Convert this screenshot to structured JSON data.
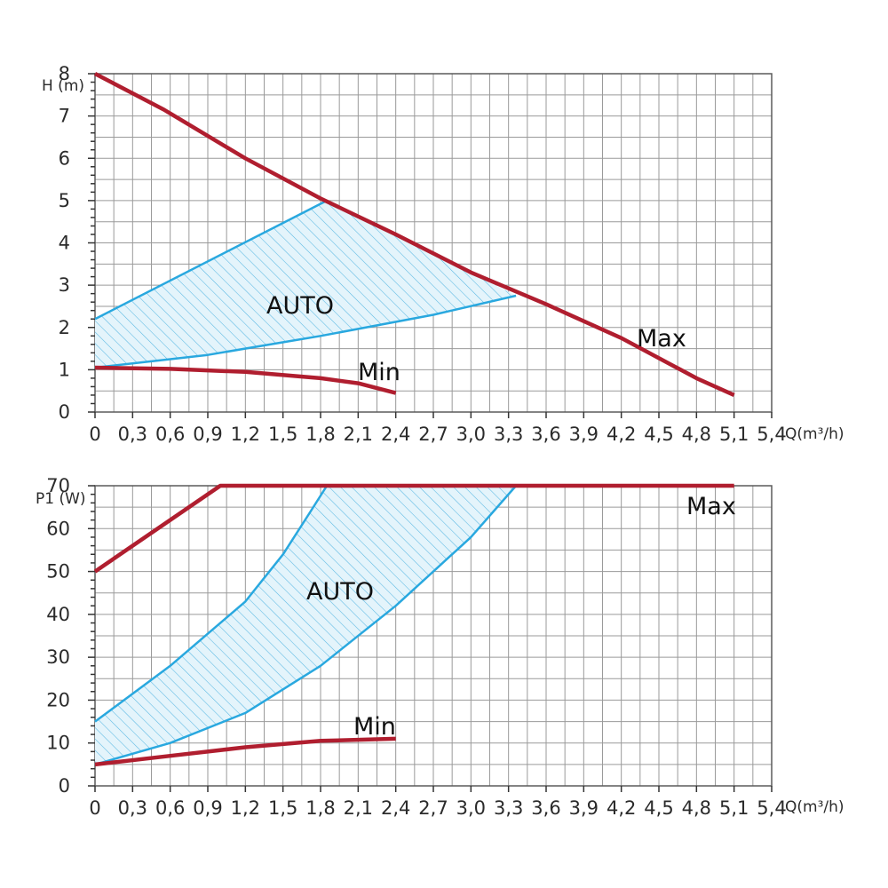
{
  "chart_data": [
    {
      "type": "line",
      "ylabel": "H (m)",
      "xlabel": "Q(m³/h)",
      "xlim": [
        0,
        5.4
      ],
      "ylim": [
        0,
        8.0
      ],
      "grid": true,
      "xticks": [
        "0",
        "0,3",
        "0,6",
        "0,9",
        "1,2",
        "1,5",
        "1,8",
        "2,1",
        "2,4",
        "2,7",
        "3,0",
        "3,3",
        "3,6",
        "3,9",
        "4,2",
        "4,5",
        "4,8",
        "5,1",
        "5,4"
      ],
      "yticks": [
        "0",
        "1",
        "2",
        "3",
        "4",
        "5",
        "6",
        "7",
        "8"
      ],
      "series": [
        {
          "name": "Max",
          "color": "#b01e2f",
          "x": [
            0,
            0.55,
            1.2,
            1.8,
            2.4,
            3.0,
            3.6,
            4.2,
            4.8,
            5.1
          ],
          "y": [
            8.0,
            7.15,
            6.0,
            5.05,
            4.2,
            3.3,
            2.55,
            1.75,
            0.8,
            0.4
          ]
        },
        {
          "name": "Min",
          "color": "#b01e2f",
          "x": [
            0,
            0.6,
            1.2,
            1.8,
            2.1,
            2.4
          ],
          "y": [
            1.05,
            1.02,
            0.95,
            0.8,
            0.68,
            0.45
          ]
        },
        {
          "name": "AUTO",
          "color": "#29a8df",
          "upper_x": [
            0,
            1.85
          ],
          "upper_y": [
            2.2,
            5.0
          ],
          "lower_x": [
            0,
            0.9,
            1.8,
            2.7,
            3.36
          ],
          "lower_y": [
            1.05,
            1.35,
            1.8,
            2.3,
            2.75
          ]
        }
      ],
      "annotations": {
        "max": "Max",
        "min": "Min",
        "auto": "AUTO"
      }
    },
    {
      "type": "line",
      "ylabel": "P1 (W)",
      "xlabel": "Q(m³/h)",
      "xlim": [
        0,
        5.4
      ],
      "ylim": [
        0,
        70
      ],
      "grid": true,
      "xticks": [
        "0",
        "0,3",
        "0,6",
        "0,9",
        "1,2",
        "1,5",
        "1,8",
        "2,1",
        "2,4",
        "2,7",
        "3,0",
        "3,3",
        "3,6",
        "3,9",
        "4,2",
        "4,5",
        "4,8",
        "5,1",
        "5,4"
      ],
      "yticks": [
        "0",
        "10",
        "20",
        "30",
        "40",
        "50",
        "60",
        "70"
      ],
      "series": [
        {
          "name": "Max",
          "color": "#b01e2f",
          "x": [
            0,
            1.0,
            5.1
          ],
          "y": [
            50,
            70,
            70
          ]
        },
        {
          "name": "Min",
          "color": "#b01e2f",
          "x": [
            0,
            0.6,
            1.2,
            1.8,
            2.4
          ],
          "y": [
            5,
            7,
            9,
            10.5,
            11
          ]
        },
        {
          "name": "AUTO",
          "color": "#29a8df",
          "upper_x": [
            0,
            0.6,
            1.2,
            1.5,
            1.72,
            1.85
          ],
          "upper_y": [
            15,
            28,
            43,
            54,
            64,
            70
          ],
          "lower_x": [
            0,
            0.6,
            1.2,
            1.8,
            2.4,
            3.0,
            3.36
          ],
          "lower_y": [
            5,
            10,
            17,
            28,
            42,
            58,
            70
          ]
        }
      ],
      "annotations": {
        "max": "Max",
        "min": "Min",
        "auto": "AUTO"
      }
    }
  ]
}
